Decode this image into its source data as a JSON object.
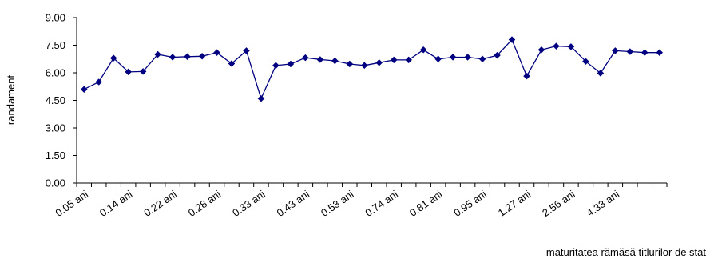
{
  "chart_data": {
    "type": "line",
    "title": "",
    "xlabel": "maturitatea rămăsă titlurilor de stat",
    "ylabel": "randament",
    "ylim": [
      0,
      9
    ],
    "yticks": [
      0,
      1.5,
      3,
      4.5,
      6,
      7.5,
      9
    ],
    "ytick_labels": [
      "0.00",
      "1.50",
      "3.00",
      "4.50",
      "6.00",
      "7.50",
      "9.00"
    ],
    "grid": false,
    "legend": "none",
    "x_tick_labels_every": 3,
    "categories": [
      "0.05 ani",
      "",
      "",
      "0.14 ani",
      "",
      "",
      "0.22 ani",
      "",
      "",
      "0.28 ani",
      "",
      "",
      "0.33 ani",
      "",
      "",
      "0.43 ani",
      "",
      "",
      "0.53 ani",
      "",
      "",
      "0.74 ani",
      "",
      "",
      "0.81 ani",
      "",
      "",
      "0.95 ani",
      "",
      "",
      "1.27 ani",
      "",
      "",
      "2.56 ani",
      "",
      "",
      "4.33 ani",
      "",
      "",
      ""
    ],
    "series": [
      {
        "name": "",
        "color": "#000080",
        "marker": "diamond",
        "values": [
          5.1,
          5.5,
          6.8,
          6.05,
          6.07,
          7.0,
          6.85,
          6.88,
          6.9,
          7.1,
          6.5,
          7.2,
          4.6,
          6.4,
          6.48,
          6.82,
          6.72,
          6.65,
          6.48,
          6.4,
          6.55,
          6.7,
          6.7,
          7.25,
          6.75,
          6.85,
          6.85,
          6.75,
          6.95,
          7.8,
          5.82,
          7.25,
          7.45,
          7.42,
          6.62,
          5.98,
          7.2,
          7.15,
          7.1,
          7.1
        ]
      }
    ]
  }
}
